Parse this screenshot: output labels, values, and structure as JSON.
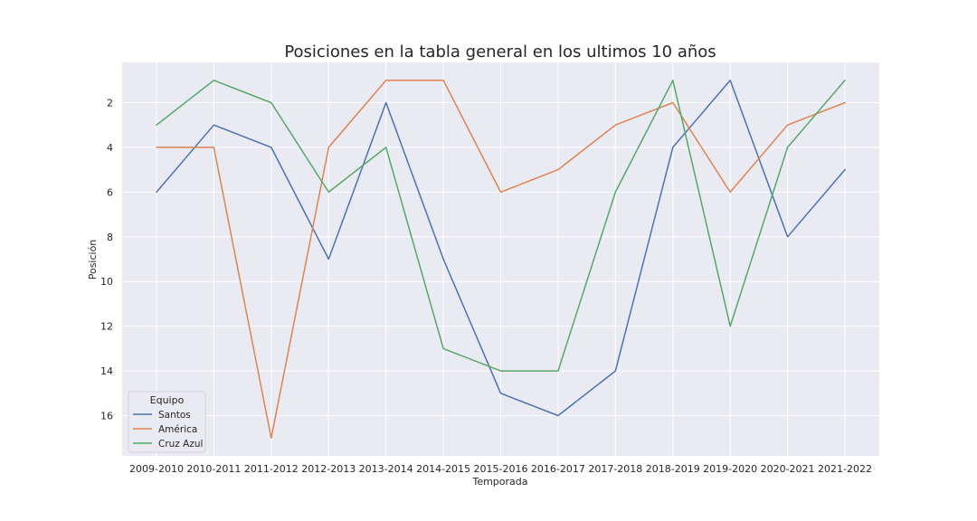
{
  "chart_data": {
    "type": "line",
    "title": "Posiciones en la tabla general en los ultimos 10 años",
    "xlabel": "Temporada",
    "ylabel": "Posición",
    "categories": [
      "2009-2010",
      "2010-2011",
      "2011-2012",
      "2012-2013",
      "2013-2014",
      "2014-2015",
      "2015-2016",
      "2016-2017",
      "2017-2018",
      "2018-2019",
      "2019-2020",
      "2020-2021",
      "2021-2022"
    ],
    "y_inverted": true,
    "ylim": [
      17.8,
      0.2
    ],
    "yticks": [
      2,
      4,
      6,
      8,
      10,
      12,
      14,
      16
    ],
    "grid": true,
    "legend": {
      "title": "Equipo",
      "position": "lower-left"
    },
    "series": [
      {
        "name": "Santos",
        "color": "#4c72b0",
        "values": [
          6,
          3,
          4,
          9,
          2,
          9,
          15,
          16,
          14,
          4,
          1,
          8,
          5
        ]
      },
      {
        "name": "América",
        "color": "#dd8452",
        "values": [
          4,
          4,
          17,
          4,
          1,
          1,
          6,
          5,
          3,
          2,
          6,
          3,
          2
        ]
      },
      {
        "name": "Cruz Azul",
        "color": "#55a868",
        "values": [
          3,
          1,
          2,
          6,
          4,
          13,
          14,
          14,
          6,
          1,
          12,
          4,
          1
        ]
      }
    ]
  }
}
